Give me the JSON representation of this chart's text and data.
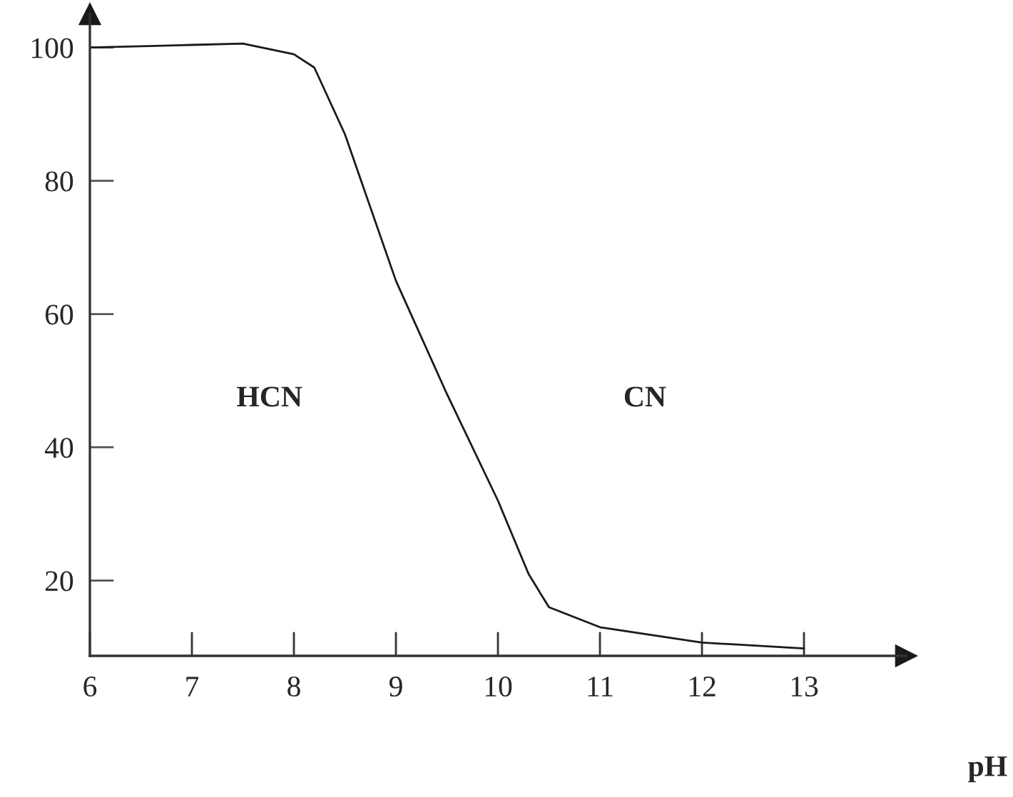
{
  "chart_data": {
    "type": "line",
    "xlabel": "pH",
    "x": [
      6.0,
      6.5,
      7.0,
      7.5,
      8.0,
      8.2,
      8.5,
      9.0,
      9.5,
      10.0,
      10.3,
      10.5,
      11.0,
      12.0,
      13.0
    ],
    "series": [
      {
        "color": "#1a1a1a",
        "values": [
          100,
          100.2,
          100.4,
          100.6,
          99,
          97,
          87,
          65,
          48,
          32,
          21,
          16,
          13,
          10.7,
          9.8
        ]
      }
    ],
    "xlim": [
      6,
      14
    ],
    "ylim": [
      8.7,
      105
    ],
    "xticks": [
      6,
      7,
      8,
      9,
      10,
      11,
      12,
      13
    ],
    "yticks": [
      20,
      40,
      60,
      80,
      100
    ],
    "annotations": [
      "HCN",
      "CN"
    ],
    "grid": false,
    "marker": "none",
    "line_style": "solid"
  }
}
